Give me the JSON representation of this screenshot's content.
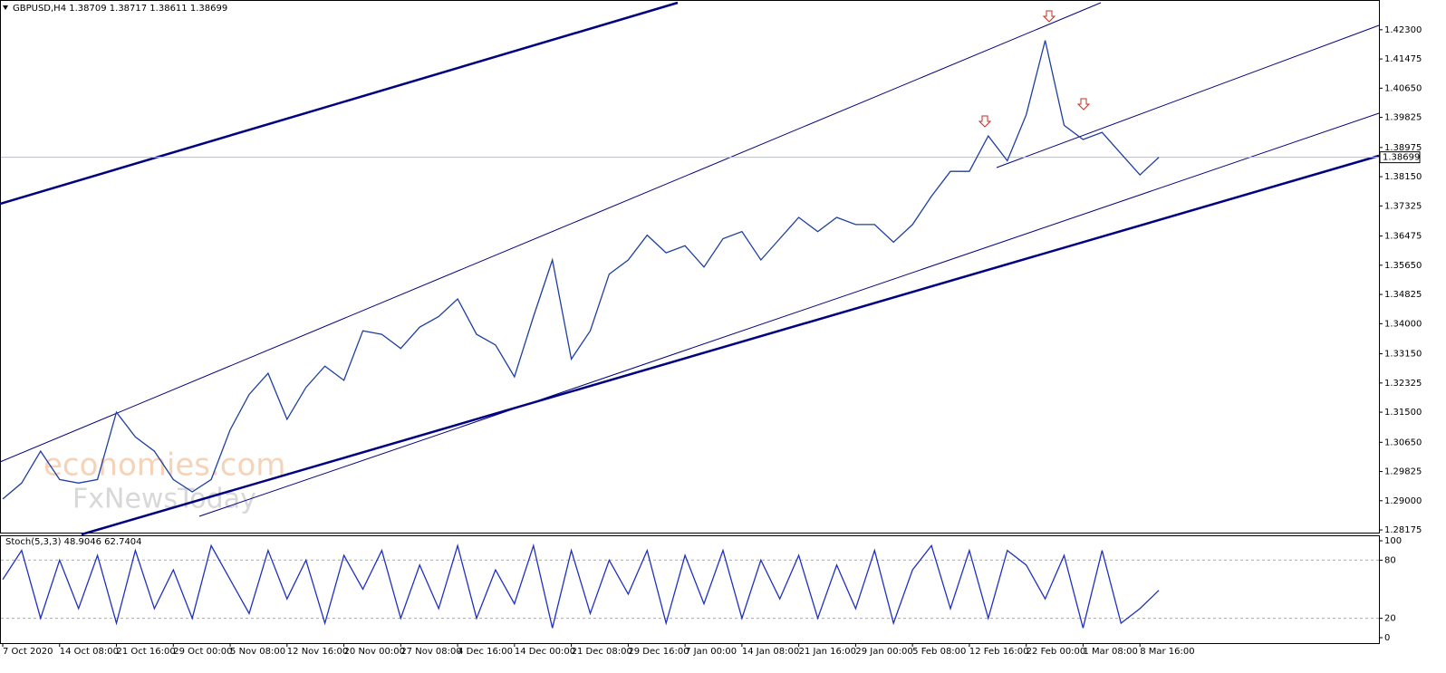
{
  "chart_data": [
    {
      "type": "line",
      "title": "GBPUSD,H4  1.38709 1.38717 1.38611 1.38699",
      "watermark": [
        "economies.com",
        "FxNewsToday"
      ],
      "categories": [
        "7 Oct 2020",
        null,
        null,
        "14 Oct 08:00",
        null,
        null,
        "21 Oct 16:00",
        null,
        null,
        "29 Oct 00:00",
        null,
        null,
        "5 Nov 08:00",
        null,
        null,
        "12 Nov 16:00",
        null,
        null,
        "20 Nov 00:00",
        null,
        null,
        "27 Nov 08:00",
        null,
        null,
        "4 Dec 16:00",
        null,
        null,
        "14 Dec 00:00",
        null,
        null,
        "21 Dec 08:00",
        null,
        null,
        "29 Dec 16:00",
        null,
        null,
        "7 Jan 00:00",
        null,
        null,
        "14 Jan 08:00",
        null,
        null,
        "21 Jan 16:00",
        null,
        null,
        "29 Jan 00:00",
        null,
        null,
        "5 Feb 08:00",
        null,
        null,
        "12 Feb 16:00",
        null,
        null,
        "22 Feb 00:00",
        null,
        null,
        "1 Mar 08:00",
        null,
        null,
        "8 Mar 16:00",
        null
      ],
      "values": [
        1.2905,
        1.295,
        1.304,
        1.296,
        1.295,
        1.296,
        1.315,
        1.308,
        1.304,
        1.296,
        1.2925,
        1.296,
        1.31,
        1.32,
        1.326,
        1.313,
        1.322,
        1.328,
        1.324,
        1.338,
        1.337,
        1.333,
        1.339,
        1.342,
        1.347,
        1.337,
        1.334,
        1.325,
        1.342,
        1.358,
        1.33,
        1.338,
        1.354,
        1.358,
        1.365,
        1.36,
        1.362,
        1.356,
        1.364,
        1.366,
        1.358,
        1.364,
        1.37,
        1.366,
        1.37,
        1.368,
        1.368,
        1.363,
        1.368,
        1.376,
        1.383,
        1.383,
        1.393,
        1.386,
        1.399,
        1.42,
        1.396,
        1.392,
        1.394,
        1.388,
        1.382,
        1.38699
      ],
      "color": "#1f3fa0",
      "last_price": 1.38699,
      "ylim": [
        1.281,
        1.4314
      ],
      "yticks": [
        {
          "value": 1.423,
          "label": "1.42300"
        },
        {
          "value": 1.41475,
          "label": "1.41475"
        },
        {
          "value": 1.4065,
          "label": "1.40650"
        },
        {
          "value": 1.39825,
          "label": "1.39825"
        },
        {
          "value": 1.38975,
          "label": "1.38975"
        },
        {
          "value": 1.3815,
          "label": "1.38150"
        },
        {
          "value": 1.37325,
          "label": "1.37325"
        },
        {
          "value": 1.36475,
          "label": "1.36475"
        },
        {
          "value": 1.3565,
          "label": "1.35650"
        },
        {
          "value": 1.34825,
          "label": "1.34825"
        },
        {
          "value": 1.34,
          "label": "1.34000"
        },
        {
          "value": 1.3315,
          "label": "1.33150"
        },
        {
          "value": 1.32325,
          "label": "1.32325"
        },
        {
          "value": 1.315,
          "label": "1.31500"
        },
        {
          "value": 1.3065,
          "label": "1.30650"
        },
        {
          "value": 1.29825,
          "label": "1.29825"
        },
        {
          "value": 1.29,
          "label": "1.29000"
        },
        {
          "value": 1.28175,
          "label": "1.28175"
        }
      ]
    },
    {
      "type": "line",
      "title": "Stoch(5,3,3) 48.9046 62.7404",
      "values": [
        60,
        90,
        20,
        80,
        30,
        85,
        15,
        90,
        30,
        70,
        20,
        95,
        60,
        25,
        90,
        40,
        80,
        15,
        85,
        50,
        90,
        20,
        75,
        30,
        95,
        20,
        70,
        35,
        95,
        10,
        90,
        25,
        80,
        45,
        90,
        15,
        85,
        35,
        90,
        20,
        80,
        40,
        85,
        20,
        75,
        30,
        90,
        15,
        70,
        95,
        30,
        90,
        20,
        90,
        75,
        40,
        85,
        10,
        90,
        15,
        30,
        48.9046
      ],
      "color": "#2030c0",
      "ylim": [
        -5.6,
        104.7
      ],
      "yticks": [
        100,
        80,
        20,
        0
      ],
      "levels": [
        80,
        20
      ]
    }
  ]
}
